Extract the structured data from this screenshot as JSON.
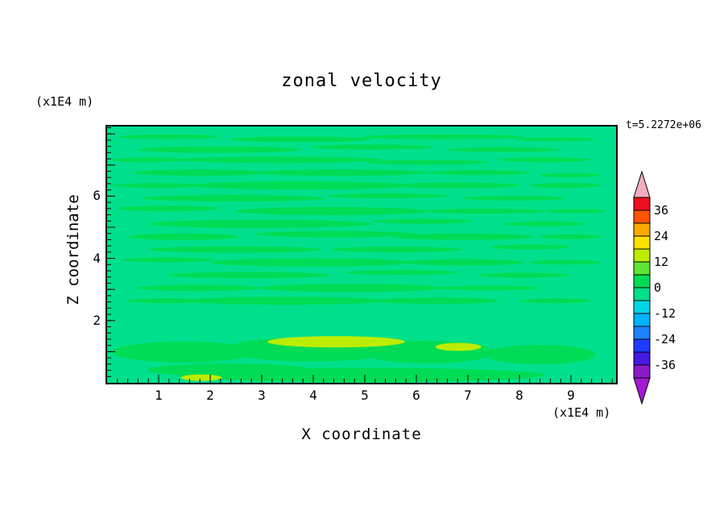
{
  "title": "zonal velocity",
  "timestamp": "t=5.2272e+06",
  "axes": {
    "x_label": "X coordinate",
    "y_label": "Z coordinate",
    "x_unit": "(x1E4 m)",
    "y_unit": "(x1E4 m)"
  },
  "colors": {
    "background": "#FFFFFF",
    "frame": "#000000",
    "field_base": "#00E08C",
    "field_streak": "#00DC55",
    "field_patch": "#BCEC00"
  },
  "chart_data": {
    "type": "heatmap",
    "subtype": "filled_contour",
    "title": "zonal velocity",
    "xlabel": "X coordinate",
    "ylabel": "Z coordinate",
    "x_units": "x1E4 m",
    "y_units": "x1E4 m",
    "time_annotation": "t=5.2272e+06",
    "xlim": [
      0,
      9.9
    ],
    "ylim": [
      0,
      8.2
    ],
    "x_tick_labels": [
      1,
      2,
      3,
      4,
      5,
      6,
      7,
      8,
      9
    ],
    "y_tick_labels": [
      2,
      4,
      6
    ],
    "grid": false,
    "legend_position": "right-colorbar",
    "colorbar": {
      "tick_labels": [
        36,
        24,
        12,
        0,
        -12,
        -24,
        -36
      ],
      "level_min": -42,
      "level_max": 42,
      "level_step": 6,
      "segment_colors_bottom_to_top": [
        "#8C19C8",
        "#4619E0",
        "#1E3CFF",
        "#1E82FF",
        "#00B4FF",
        "#00D7E6",
        "#00E08C",
        "#00DC55",
        "#5FE632",
        "#BCEC00",
        "#FFE100",
        "#FFAA00",
        "#FF5500",
        "#F00F1E"
      ],
      "under_arrow_color": "#A519D2",
      "over_arrow_color": "#F2AEBE"
    },
    "field": {
      "description": "Zonal velocity mostly near 0 m/s: background in the -6..0 band with thin horizontal streaks in the 0..6 band across the upper domain; broader positive blobs near the bottom boundary with small 12..18 band patches around x=4.5 and x=6.9 at z~1.",
      "base_band": "-6..0",
      "streak_band": "0..6",
      "patch_band": "12..18",
      "streaks": [
        [
          12,
          4,
          10,
          3
        ],
        [
          38,
          5,
          14,
          3.5
        ],
        [
          66,
          4,
          16,
          3
        ],
        [
          88,
          5,
          8,
          2.5
        ],
        [
          22,
          9,
          16,
          4
        ],
        [
          52,
          8,
          12,
          3
        ],
        [
          78,
          9,
          11,
          3
        ],
        [
          8,
          13,
          7,
          3
        ],
        [
          34,
          13,
          20,
          4
        ],
        [
          63,
          14,
          12,
          3
        ],
        [
          86,
          13,
          9,
          3
        ],
        [
          18,
          18,
          13,
          4
        ],
        [
          46,
          18,
          17,
          4
        ],
        [
          73,
          18,
          10,
          3
        ],
        [
          91,
          19,
          6,
          2.5
        ],
        [
          10,
          23,
          9,
          3
        ],
        [
          38,
          23,
          22,
          5
        ],
        [
          68,
          23,
          13,
          3.5
        ],
        [
          90,
          23,
          7,
          3
        ],
        [
          25,
          28,
          18,
          4
        ],
        [
          55,
          27,
          12,
          3
        ],
        [
          80,
          28,
          10,
          3
        ],
        [
          12,
          32,
          10,
          3.5
        ],
        [
          44,
          33,
          19,
          5
        ],
        [
          74,
          33,
          12,
          3
        ],
        [
          92,
          33,
          6,
          2.5
        ],
        [
          30,
          38,
          22,
          5
        ],
        [
          62,
          37,
          10,
          3
        ],
        [
          86,
          38,
          8,
          3
        ],
        [
          15,
          43,
          11,
          4
        ],
        [
          45,
          42,
          16,
          4
        ],
        [
          70,
          43,
          14,
          4
        ],
        [
          91,
          43,
          6,
          3
        ],
        [
          25,
          48,
          17,
          4
        ],
        [
          57,
          48,
          13,
          3.5
        ],
        [
          83,
          47,
          8,
          3
        ],
        [
          12,
          52,
          9,
          3
        ],
        [
          40,
          53,
          20,
          5
        ],
        [
          70,
          53,
          12,
          4
        ],
        [
          90,
          53,
          7,
          3
        ],
        [
          28,
          58,
          16,
          4
        ],
        [
          58,
          57,
          11,
          3
        ],
        [
          82,
          58,
          9,
          3
        ],
        [
          18,
          63,
          12,
          4
        ],
        [
          48,
          63,
          18,
          5
        ],
        [
          75,
          63,
          10,
          3
        ],
        [
          35,
          68,
          20,
          5
        ],
        [
          65,
          68,
          12,
          4
        ],
        [
          12,
          68,
          8,
          3
        ],
        [
          88,
          68,
          7,
          3
        ]
      ],
      "blobs": [
        [
          15,
          88,
          14,
          13
        ],
        [
          40,
          87,
          17,
          15
        ],
        [
          63,
          88,
          13,
          14
        ],
        [
          85,
          89,
          11,
          12
        ],
        [
          50,
          97,
          36,
          9
        ],
        [
          24,
          95,
          16,
          8
        ]
      ],
      "patches": [
        [
          45,
          84,
          13.5,
          7
        ],
        [
          69,
          86,
          4.5,
          5
        ],
        [
          18.5,
          98,
          4,
          4
        ]
      ]
    }
  }
}
